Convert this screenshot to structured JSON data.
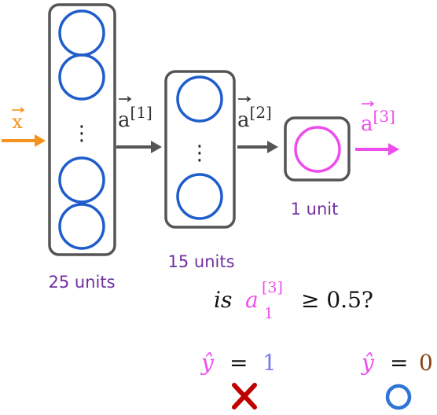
{
  "input": {
    "label": "x",
    "color": "#F5931E"
  },
  "layers": [
    {
      "units_label": "25 units",
      "activation_base": "a",
      "activation_sup": "[1]"
    },
    {
      "units_label": "15 units",
      "activation_base": "a",
      "activation_sup": "[2]"
    },
    {
      "units_label": "1 unit",
      "activation_base": "a",
      "activation_sup": "[3]"
    }
  ],
  "ellipsis": "⋮",
  "question": {
    "prefix": "is",
    "var": "a",
    "sub": "1",
    "sup": "[3]",
    "rest": "≥ 0.5?"
  },
  "outcomes": [
    {
      "yhat": "ŷ",
      "eq": "=",
      "value": "1",
      "marker": "cross-icon"
    },
    {
      "yhat": "ŷ",
      "eq": "=",
      "value": "0",
      "marker": "circle-icon"
    }
  ],
  "colors": {
    "neuron": "#1F5DCB",
    "output_neuron": "#EE4DEE",
    "box": "#555555",
    "arrow": "#555555",
    "units_text": "#7030A0",
    "yhat": "#EE4DEE",
    "value_one": "#7B7BE8",
    "value_zero": "#8B4513",
    "cross": "#C00000",
    "circle": "#2E75D6"
  }
}
